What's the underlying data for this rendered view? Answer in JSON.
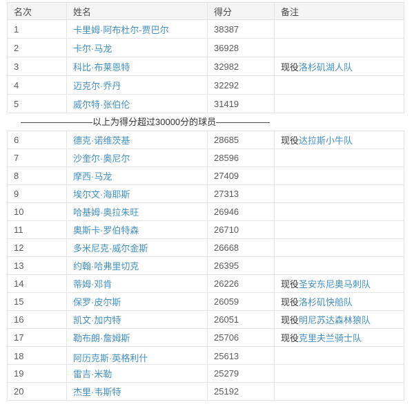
{
  "theme": {
    "link_color": "#4490c4",
    "border_color": "#e4e4e4",
    "header_bg": "#f5f5f5",
    "text_color": "#333333",
    "muted_text_color": "#5b5b5b"
  },
  "columns": [
    {
      "key": "rank",
      "label": "名次"
    },
    {
      "key": "name",
      "label": "姓名"
    },
    {
      "key": "score",
      "label": "得分"
    },
    {
      "key": "remark",
      "label": "备注"
    }
  ],
  "separator": {
    "text": "————————以上为得分超过30000分的球员——————"
  },
  "table1": {
    "rows": [
      {
        "rank": "1",
        "name": "卡里姆·阿布杜尔-贾巴尔",
        "score": "38387",
        "remark_prefix": "",
        "remark_team": ""
      },
      {
        "rank": "2",
        "name": "卡尔·马龙",
        "score": "36928",
        "remark_prefix": "",
        "remark_team": ""
      },
      {
        "rank": "3",
        "name": "科比·布莱恩特",
        "score": "32982",
        "remark_prefix": "现役",
        "remark_team": "洛杉矶湖人队"
      },
      {
        "rank": "4",
        "name": "迈克尔·乔丹",
        "score": "32292",
        "remark_prefix": "",
        "remark_team": ""
      },
      {
        "rank": "5",
        "name": "威尔特·张伯伦",
        "score": "31419",
        "remark_prefix": "",
        "remark_team": ""
      }
    ]
  },
  "table2": {
    "rows": [
      {
        "rank": "6",
        "name": "德克·诺维茨基",
        "score": "28685",
        "remark_prefix": "现役",
        "remark_team": "达拉斯小牛队"
      },
      {
        "rank": "7",
        "name": "沙奎尔·奥尼尔",
        "score": "28596",
        "remark_prefix": "",
        "remark_team": ""
      },
      {
        "rank": "8",
        "name": "摩西·马龙",
        "score": "27409",
        "remark_prefix": "",
        "remark_team": ""
      },
      {
        "rank": "9",
        "name": "埃尔文·海耶斯",
        "score": "27313",
        "remark_prefix": "",
        "remark_team": ""
      },
      {
        "rank": "10",
        "name": "哈基姆·奥拉朱旺",
        "score": "26946",
        "remark_prefix": "",
        "remark_team": ""
      },
      {
        "rank": "11",
        "name": "奥斯卡·罗伯特森",
        "score": "26710",
        "remark_prefix": "",
        "remark_team": ""
      },
      {
        "rank": "12",
        "name": "多米尼克·威尔金斯",
        "score": "26668",
        "remark_prefix": "",
        "remark_team": ""
      },
      {
        "rank": "13",
        "name": "约翰·哈弗里切克",
        "score": "26395",
        "remark_prefix": "",
        "remark_team": ""
      },
      {
        "rank": "14",
        "name": "蒂姆·邓肯",
        "score": "26226",
        "remark_prefix": "现役",
        "remark_team": "圣安东尼奥马刺队"
      },
      {
        "rank": "15",
        "name": "保罗·皮尔斯",
        "score": "26059",
        "remark_prefix": "现役",
        "remark_team": "洛杉矶快船队"
      },
      {
        "rank": "16",
        "name": "凯文·加内特",
        "score": "26051",
        "remark_prefix": "现役",
        "remark_team": "明尼苏达森林狼队"
      },
      {
        "rank": "17",
        "name": "勒布朗·詹姆斯",
        "score": "25706",
        "remark_prefix": "现役",
        "remark_team": "克里夫兰骑士队"
      },
      {
        "rank": "18",
        "name": "阿历克斯·英格利什",
        "score": "25613",
        "remark_prefix": "",
        "remark_team": "",
        "tall": true
      },
      {
        "rank": "19",
        "name": "雷吉·米勒",
        "score": "25279",
        "remark_prefix": "",
        "remark_team": ""
      },
      {
        "rank": "20",
        "name": "杰里·韦斯特",
        "score": "25192",
        "remark_prefix": "",
        "remark_team": ""
      }
    ]
  }
}
